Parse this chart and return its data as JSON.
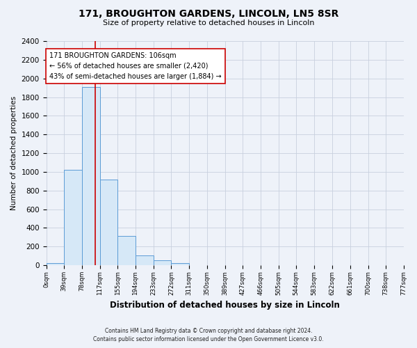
{
  "title": "171, BROUGHTON GARDENS, LINCOLN, LN5 8SR",
  "subtitle": "Size of property relative to detached houses in Lincoln",
  "bar_values": [
    20,
    1020,
    1910,
    920,
    315,
    105,
    50,
    20,
    0,
    0,
    0,
    0,
    0,
    0,
    0,
    0,
    0,
    0,
    0,
    0
  ],
  "bin_edges": [
    0,
    39,
    78,
    117,
    155,
    194,
    233,
    272,
    311,
    350,
    389,
    427,
    466,
    505,
    544,
    583,
    622,
    661,
    700,
    738,
    777
  ],
  "bin_labels": [
    "0sqm",
    "39sqm",
    "78sqm",
    "117sqm",
    "155sqm",
    "194sqm",
    "233sqm",
    "272sqm",
    "311sqm",
    "350sqm",
    "389sqm",
    "427sqm",
    "466sqm",
    "505sqm",
    "544sqm",
    "583sqm",
    "622sqm",
    "661sqm",
    "700sqm",
    "738sqm",
    "777sqm"
  ],
  "bar_color": "#d6e8f7",
  "bar_edgecolor": "#5b9bd5",
  "vline_x": 106,
  "vline_color": "#cc0000",
  "annotation_title": "171 BROUGHTON GARDENS: 106sqm",
  "annotation_line1": "← 56% of detached houses are smaller (2,420)",
  "annotation_line2": "43% of semi-detached houses are larger (1,884) →",
  "annotation_box_facecolor": "#ffffff",
  "annotation_box_edgecolor": "#cc0000",
  "ylabel": "Number of detached properties",
  "xlabel": "Distribution of detached houses by size in Lincoln",
  "ylim": [
    0,
    2400
  ],
  "yticks": [
    0,
    200,
    400,
    600,
    800,
    1000,
    1200,
    1400,
    1600,
    1800,
    2000,
    2200,
    2400
  ],
  "footer_line1": "Contains HM Land Registry data © Crown copyright and database right 2024.",
  "footer_line2": "Contains public sector information licensed under the Open Government Licence v3.0.",
  "bg_color": "#eef2f9",
  "plot_bg_color": "#eef2f9",
  "grid_color": "#c8d0de"
}
